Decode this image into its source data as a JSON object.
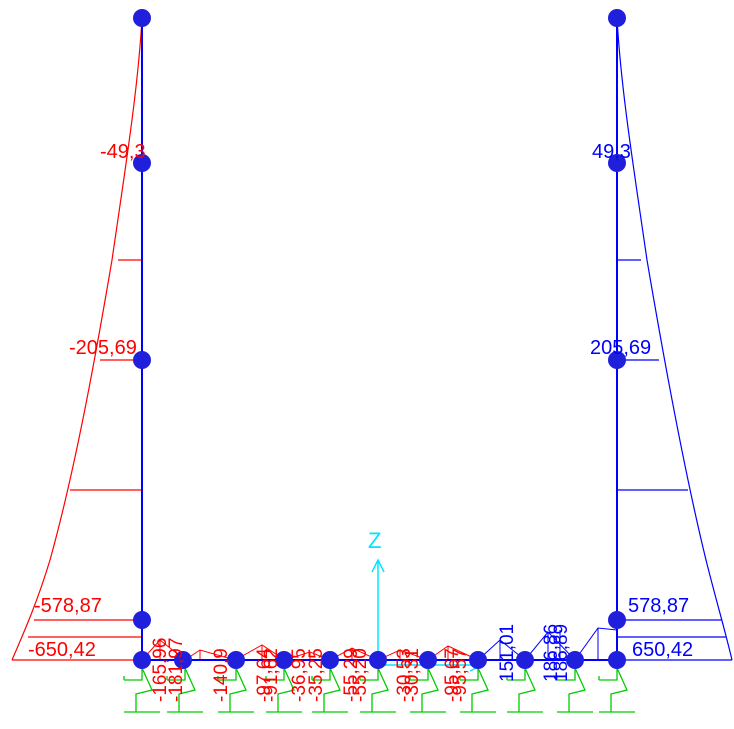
{
  "colors": {
    "negative": "#ff0000",
    "positive": "#0000ff",
    "member": "#0000ff",
    "node": "#1f1fdc",
    "axis": "#00e5ff",
    "spring": "#00cc00"
  },
  "axis": {
    "label": "Z"
  },
  "left_column_labels": [
    {
      "text": "-49,3"
    },
    {
      "text": "-205,69"
    },
    {
      "text": "-578,87"
    },
    {
      "text": "-650,42"
    }
  ],
  "right_column_labels": [
    {
      "text": "49,3"
    },
    {
      "text": "205,69"
    },
    {
      "text": "578,87"
    },
    {
      "text": "650,42"
    }
  ],
  "beam_labels_red": [
    {
      "text": "-165,96"
    },
    {
      "text": "-181,97"
    },
    {
      "text": "-140,9"
    },
    {
      "text": "-97,64"
    },
    {
      "text": "-91,62"
    },
    {
      "text": "-36,95"
    },
    {
      "text": "-35,25"
    },
    {
      "text": "-55,29"
    },
    {
      "text": "-55,20"
    },
    {
      "text": "-30,53"
    },
    {
      "text": "-30,31"
    },
    {
      "text": "-95,67"
    },
    {
      "text": "-95,57"
    }
  ],
  "beam_labels_blue": [
    {
      "text": "151,01"
    },
    {
      "text": "186,86"
    },
    {
      "text": "186,89"
    }
  ]
}
